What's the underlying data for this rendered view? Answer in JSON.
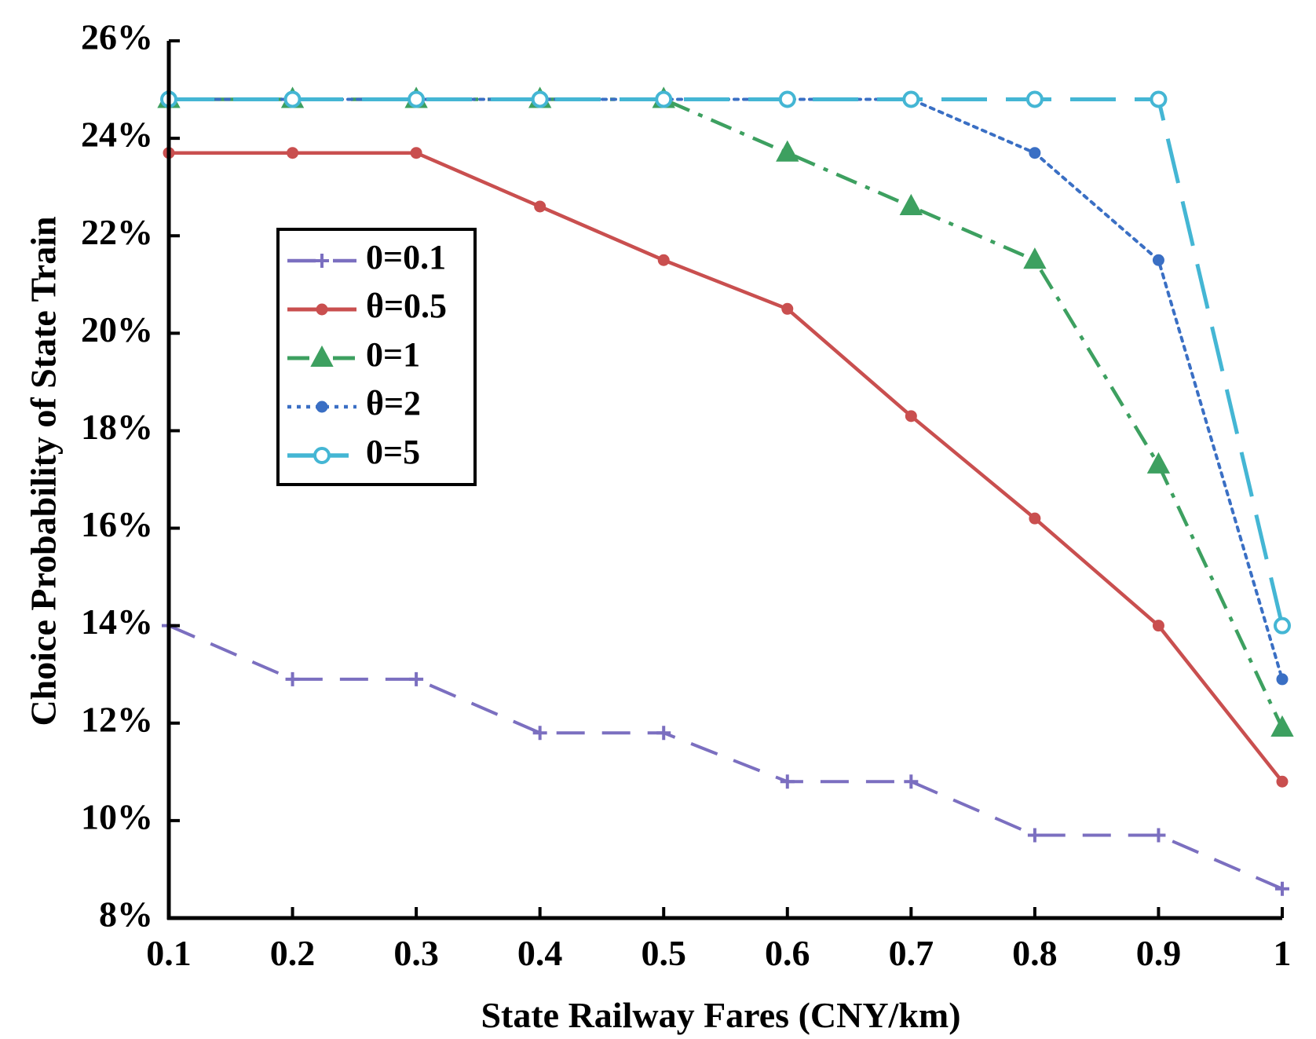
{
  "chart_data": {
    "type": "line",
    "title": "",
    "xlabel": "State Railway Fares (CNY/km)",
    "ylabel": "Choice Probability of State Train",
    "x": [
      0.1,
      0.2,
      0.3,
      0.4,
      0.5,
      0.6,
      0.7,
      0.8,
      0.9,
      1.0
    ],
    "xlim": [
      0.1,
      1.0
    ],
    "ylim": [
      8,
      26
    ],
    "x_tick_labels": [
      "0.1",
      "0.2",
      "0.3",
      "0.4",
      "0.5",
      "0.6",
      "0.7",
      "0.8",
      "0.9",
      "1"
    ],
    "y_ticks": [
      8,
      10,
      12,
      14,
      16,
      18,
      20,
      22,
      24,
      26
    ],
    "y_tick_labels": [
      "8%",
      "10%",
      "12%",
      "14%",
      "16%",
      "18%",
      "20%",
      "22%",
      "24%",
      "26%"
    ],
    "grid": false,
    "legend_position": "upper-left-inside",
    "series": [
      {
        "name": "0=0.1",
        "color": "#7b6fc0",
        "marker": "plus",
        "dash": "dashed",
        "values": [
          14.0,
          12.9,
          12.9,
          11.8,
          11.8,
          10.8,
          10.8,
          9.7,
          9.7,
          8.6
        ]
      },
      {
        "name": "θ=0.5",
        "color": "#c94f4f",
        "marker": "filled-circle",
        "dash": "solid",
        "values": [
          23.7,
          23.7,
          23.7,
          22.6,
          21.5,
          20.5,
          18.3,
          16.2,
          14.0,
          10.8
        ]
      },
      {
        "name": "0=1",
        "color": "#3da060",
        "marker": "triangle",
        "dash": "dashdot",
        "values": [
          24.8,
          24.8,
          24.8,
          24.8,
          24.8,
          23.7,
          22.6,
          21.5,
          17.3,
          11.9
        ]
      },
      {
        "name": "θ=2",
        "color": "#3a6fc4",
        "marker": "small-dot",
        "dash": "dotted",
        "values": [
          24.8,
          24.8,
          24.8,
          24.8,
          24.8,
          24.8,
          24.8,
          23.7,
          21.5,
          12.9
        ]
      },
      {
        "name": "0=5",
        "color": "#44b6d4",
        "marker": "open-circle",
        "dash": "longdash",
        "values": [
          24.8,
          24.8,
          24.8,
          24.8,
          24.8,
          24.8,
          24.8,
          24.8,
          24.8,
          14.0
        ]
      }
    ]
  }
}
